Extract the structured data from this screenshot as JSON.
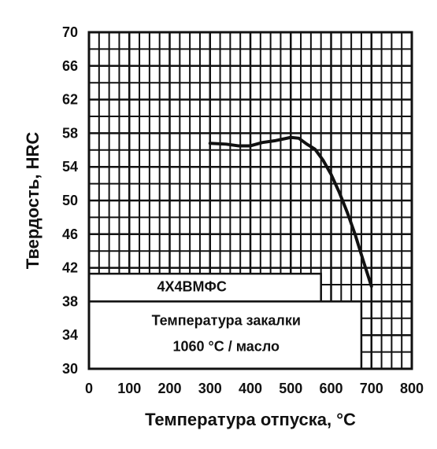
{
  "chart_data": {
    "type": "line",
    "xlabel": "Температура отпуска, °С",
    "ylabel": "Твердость, HRC",
    "xlim": [
      0,
      800
    ],
    "ylim": [
      30,
      70
    ],
    "xticks": [
      "0",
      "100",
      "200",
      "300",
      "400",
      "500",
      "600",
      "700",
      "800"
    ],
    "yticks": [
      "30",
      "34",
      "38",
      "42",
      "46",
      "50",
      "54",
      "58",
      "62",
      "66",
      "70"
    ],
    "grid": true,
    "series": [
      {
        "name": "",
        "x": [
          300,
          340,
          370,
          400,
          430,
          460,
          500,
          520,
          540,
          560,
          580,
          600,
          620,
          640,
          660,
          680,
          700
        ],
        "y": [
          56.8,
          56.7,
          56.5,
          56.5,
          56.9,
          57.1,
          57.5,
          57.4,
          56.7,
          56.1,
          54.8,
          53.1,
          51.0,
          48.6,
          45.9,
          42.8,
          39.8
        ]
      }
    ],
    "annotations": {
      "grade": "4Х4ВМФС",
      "quench_line1": "Температура закалки",
      "quench_line2": "1060 °С / масло"
    }
  }
}
